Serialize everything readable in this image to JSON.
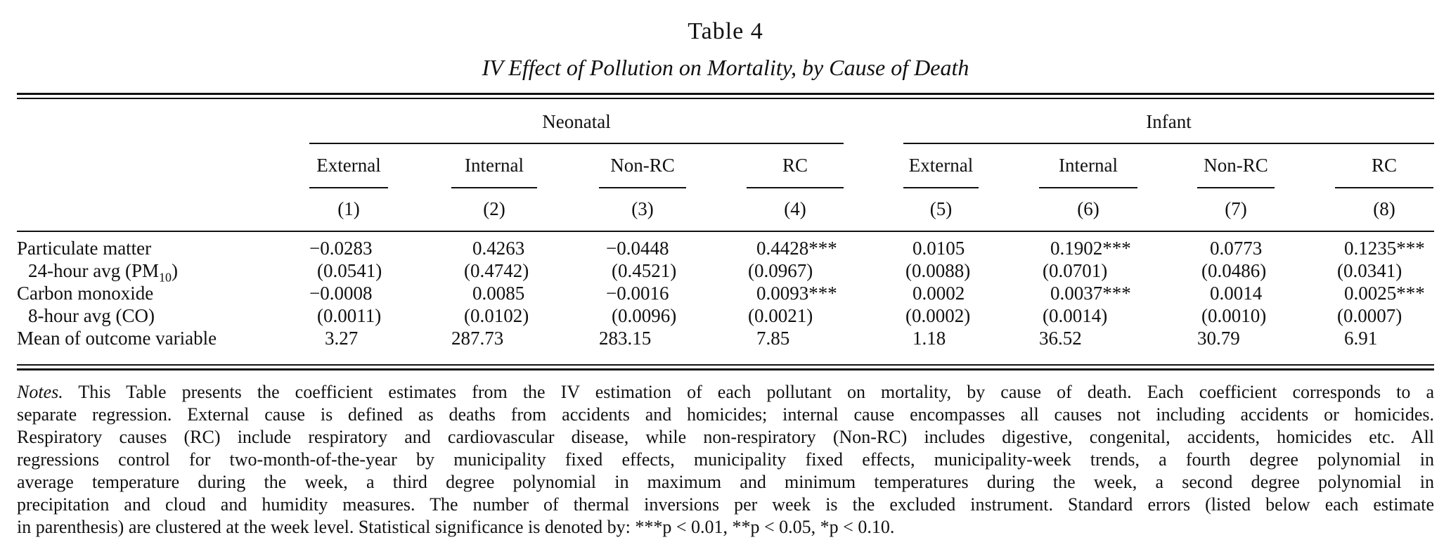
{
  "title": "Table 4",
  "subtitle": "IV Effect of Pollution on Mortality, by Cause of Death",
  "groups": [
    {
      "label": "Neonatal"
    },
    {
      "label": "Infant"
    }
  ],
  "columns": [
    {
      "label": "External",
      "num": "(1)"
    },
    {
      "label": "Internal",
      "num": "(2)"
    },
    {
      "label": "Non-RC",
      "num": "(3)"
    },
    {
      "label": "RC",
      "num": "(4)"
    },
    {
      "label": "External",
      "num": "(5)"
    },
    {
      "label": "Internal",
      "num": "(6)"
    },
    {
      "label": "Non-RC",
      "num": "(7)"
    },
    {
      "label": "RC",
      "num": "(8)"
    }
  ],
  "rows": [
    {
      "label": "Particulate matter",
      "values": [
        "−0.0283",
        "0.4263",
        "−0.0448",
        "0.4428***",
        "0.0105",
        "0.1902***",
        "0.0773",
        "0.1235***"
      ]
    },
    {
      "label": "24-hour avg (PM",
      "label_sub": "10",
      "label_end": ")",
      "values": [
        "(0.0541)",
        "(0.4742)",
        "(0.4521)",
        "(0.0967)",
        "(0.0088)",
        "(0.0701)",
        "(0.0486)",
        "(0.0341)"
      ]
    },
    {
      "label": "Carbon monoxide",
      "values": [
        "−0.0008",
        "0.0085",
        "−0.0016",
        "0.0093***",
        "0.0002",
        "0.0037***",
        "0.0014",
        "0.0025***"
      ]
    },
    {
      "label": "8-hour avg (CO)",
      "values": [
        "(0.0011)",
        "(0.0102)",
        "(0.0096)",
        "(0.0021)",
        "(0.0002)",
        "(0.0014)",
        "(0.0010)",
        "(0.0007)"
      ]
    },
    {
      "label": "Mean of outcome variable",
      "values": [
        "3.27",
        "287.73",
        "283.15",
        "7.85",
        "1.18",
        "36.52",
        "30.79",
        "6.91"
      ]
    }
  ],
  "notes": {
    "label": "Notes.",
    "lines": [
      " This Table presents the coefficient estimates from the IV estimation of each pollutant on mortality, by cause of death. Each coefficient corresponds to a",
      "separate regression. External cause is defined as deaths from accidents and homicides; internal cause encompasses all causes not including accidents or homicides.",
      "Respiratory causes (RC) include respiratory and cardiovascular disease, while non-respiratory (Non-RC) includes digestive, congenital, accidents, homicides etc. All",
      "regressions control for two-month-of-the-year by municipality fixed effects, municipality fixed effects, municipality-week trends, a fourth degree polynomial in",
      "average temperature during the week, a third degree polynomial in maximum and minimum temperatures during the week, a second degree polynomial in",
      "precipitation and cloud and humidity measures. The number of thermal inversions per week is the excluded instrument. Standard errors (listed below each estimate",
      "in parenthesis) are clustered at the week level. Statistical significance is denoted by: ***p < 0.01, **p < 0.05, *p < 0.10."
    ]
  }
}
